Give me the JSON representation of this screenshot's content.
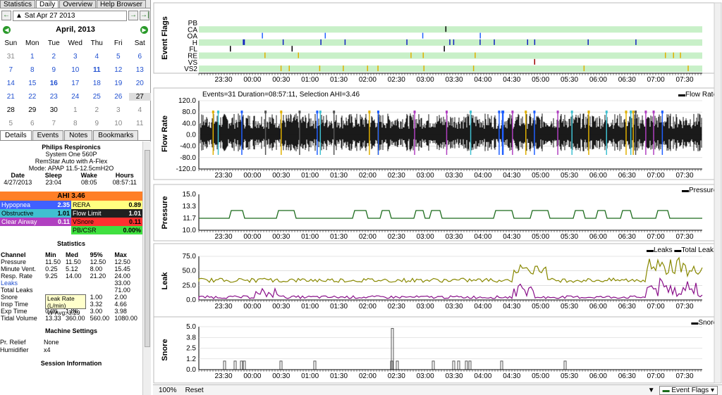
{
  "top_tabs": [
    "Statistics",
    "Daily",
    "Overview",
    "Help Browser"
  ],
  "date_label": "Sat Apr 27 2013",
  "calendar": {
    "title": "April,  2013",
    "days": [
      "Sun",
      "Mon",
      "Tue",
      "Wed",
      "Thu",
      "Fri",
      "Sat"
    ],
    "weeks": [
      [
        "31",
        "1",
        "2",
        "3",
        "4",
        "5",
        "6"
      ],
      [
        "7",
        "8",
        "9",
        "10",
        "11",
        "12",
        "13"
      ],
      [
        "14",
        "15",
        "16",
        "17",
        "18",
        "19",
        "20"
      ],
      [
        "21",
        "22",
        "23",
        "24",
        "25",
        "26",
        "27"
      ],
      [
        "28",
        "29",
        "30",
        "1",
        "2",
        "3",
        "4"
      ],
      [
        "5",
        "6",
        "7",
        "8",
        "9",
        "10",
        "11"
      ]
    ]
  },
  "detail_tabs": [
    "Details",
    "Events",
    "Notes",
    "Bookmarks"
  ],
  "machine": {
    "brand": "Philips Respironics",
    "model": "System One 560P",
    "name": "RemStar Auto with A-Flex",
    "mode": "Mode: APAP 11.5-12.5cmH2O"
  },
  "session": {
    "headers": [
      "Date",
      "Sleep",
      "Wake",
      "Hours"
    ],
    "values": [
      "4/27/2013",
      "23:04",
      "08:05",
      "08:57:11"
    ]
  },
  "ahi": "AHI 3.46",
  "indices": [
    [
      {
        "label": "Hypopnea",
        "value": "2.35",
        "color": "#4060ff",
        "text": "#fff"
      },
      {
        "label": "RERA",
        "value": "0.89",
        "color": "#ffff80",
        "text": "#000"
      }
    ],
    [
      {
        "label": "Obstructive",
        "value": "1.01",
        "color": "#40c0d0",
        "text": "#000"
      },
      {
        "label": "Flow Limit",
        "value": "1.01",
        "color": "#202020",
        "text": "#fff"
      }
    ],
    [
      {
        "label": "Clear Airway",
        "value": "0.11",
        "color": "#b040c0",
        "text": "#fff"
      },
      {
        "label": "VSnore",
        "value": "0.11",
        "color": "#ff3030",
        "text": "#000"
      }
    ],
    [
      {
        "label": "",
        "value": "",
        "color": "#fff",
        "text": "#000"
      },
      {
        "label": "PB/CSR",
        "value": "0.00%",
        "color": "#40e040",
        "text": "#000"
      }
    ]
  ],
  "statistics": {
    "title": "Statistics",
    "headers": [
      "Channel",
      "Min",
      "Med",
      "95%",
      "Max"
    ],
    "rows": [
      [
        "Pressure",
        "11.50",
        "11.50",
        "12.50",
        "12.50"
      ],
      [
        "Minute Vent.",
        "0.25",
        "5.12",
        "8.00",
        "15.45"
      ],
      [
        "Resp. Rate",
        "9.25",
        "14.00",
        "21.20",
        "24.00"
      ],
      [
        "Leaks",
        "",
        "",
        "",
        "33.00"
      ],
      [
        "Total Leaks",
        "",
        "",
        "",
        "71.00"
      ],
      [
        "Snore",
        "0.00",
        "0.00",
        "1.00",
        "2.00"
      ],
      [
        "Insp Time",
        "0.20",
        "2.20",
        "3.32",
        "4.66"
      ],
      [
        "Exp Time",
        "0.06",
        "1.86",
        "3.00",
        "3.98"
      ],
      [
        "Tidal Volume",
        "13.33",
        "360.00",
        "560.00",
        "1080.00"
      ]
    ]
  },
  "tooltip": {
    "line1": "Leak Rate (L/min)",
    "line2": "W-Avg: 3.29"
  },
  "machine_settings": {
    "title": "Machine Settings",
    "rows": [
      [
        "Pr. Relief",
        "None"
      ],
      [
        "Humidifier",
        "x4"
      ]
    ]
  },
  "session_info": "Session Information",
  "time_ticks": [
    "23:30",
    "00:00",
    "00:30",
    "01:00",
    "01:30",
    "02:00",
    "02:30",
    "03:00",
    "03:30",
    "04:00",
    "04:30",
    "05:00",
    "05:30",
    "06:00",
    "06:30",
    "07:00",
    "07:30"
  ],
  "event_flags": {
    "title": "Event Flags",
    "rows": [
      "PB",
      "CA",
      "OA",
      "H",
      "FL",
      "RE",
      "VS",
      "VS2"
    ]
  },
  "flow_rate": {
    "title": "Flow Rate",
    "legend": "Flow Rate",
    "info": "Events=31 Duration=08:57:11, Selection AHI=3.46",
    "yticks": [
      "120.0",
      "80.0",
      "40.0",
      "0.0",
      "-40.0",
      "-80.0",
      "-120.0"
    ]
  },
  "pressure": {
    "title": "Pressure",
    "legend": "Pressure",
    "yticks": [
      "15.0",
      "13.3",
      "11.7",
      "10.0"
    ],
    "color": "#1a6a1a"
  },
  "leak": {
    "title": "Leak",
    "legend1": "Leaks",
    "legend2": "Total Leaks",
    "yticks": [
      "75.0",
      "50.0",
      "25.0",
      "0.0"
    ]
  },
  "snore": {
    "title": "Snore",
    "legend": "Snore",
    "yticks": [
      "5.0",
      "3.8",
      "2.5",
      "1.2",
      "0.0"
    ]
  },
  "bottom": {
    "zoom": "100%",
    "reset": "Reset",
    "selector": "Event Flags"
  }
}
